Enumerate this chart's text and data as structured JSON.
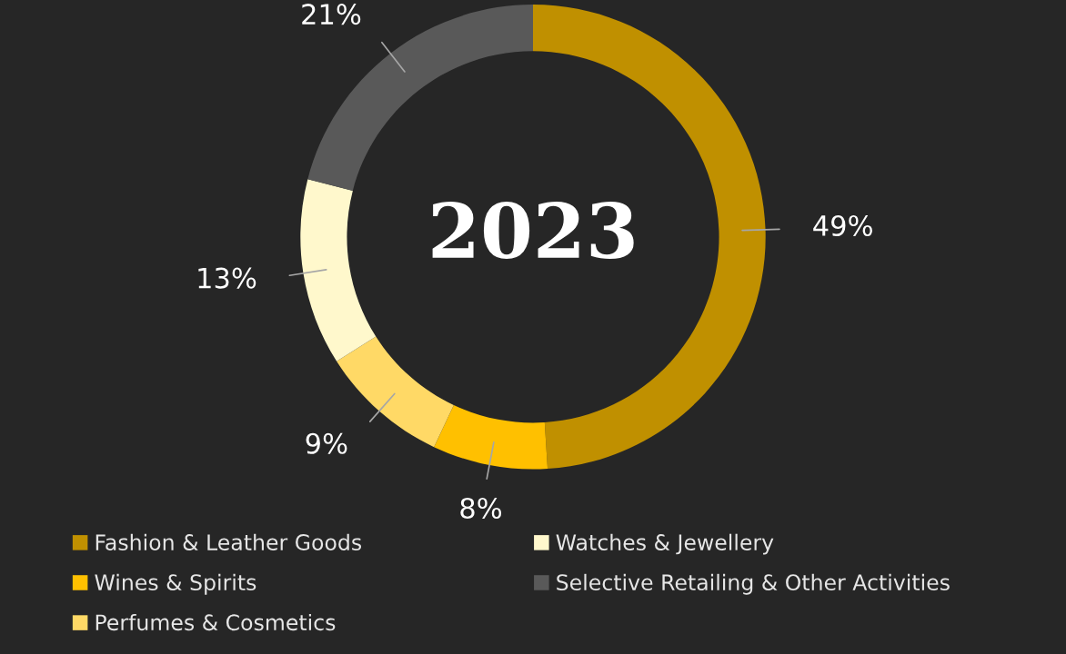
{
  "chart_data": {
    "type": "donut",
    "title": "2023",
    "categories": [
      "Fashion & Leather Goods",
      "Wines & Spirits",
      "Perfumes & Cosmetics",
      "Watches & Jewellery",
      "Selective Retailing & Other Activities"
    ],
    "values": [
      49,
      8,
      9,
      13,
      21
    ],
    "value_labels": [
      "49%",
      "8%",
      "9%",
      "13%",
      "21%"
    ],
    "colors": [
      "#c09000",
      "#ffc000",
      "#ffd966",
      "#fff8cc",
      "#595959"
    ],
    "legend": "bottom"
  }
}
